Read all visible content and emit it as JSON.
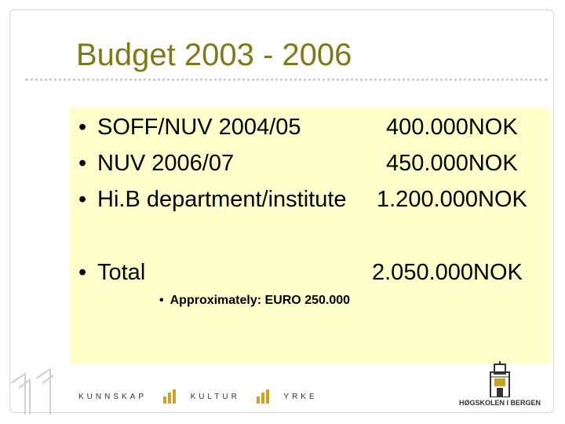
{
  "slide": {
    "title": "Budget 2003 - 2006",
    "bullet_glyph": "•",
    "items": [
      {
        "label": "SOFF/NUV 2004/05",
        "amount": "400.000NOK"
      },
      {
        "label": "NUV 2006/07",
        "amount": "450.000NOK"
      },
      {
        "label": "Hi.B department/institute",
        "amount": "1.200.000NOK"
      }
    ],
    "total": {
      "label": "Total",
      "amount": "2.050.000NOK"
    },
    "sub_item": "Approximately: EURO 250.000"
  },
  "footer": {
    "slogan_words": [
      "KUNNSKAP",
      "KULTUR",
      "YRKE"
    ],
    "logo_text": "HØGSKOLEN I BERGEN"
  },
  "colors": {
    "title": "#7d7a1c",
    "content_background": "#ffffcc",
    "accent_gold": "#c9a227",
    "rule": "#cfcfcf"
  }
}
